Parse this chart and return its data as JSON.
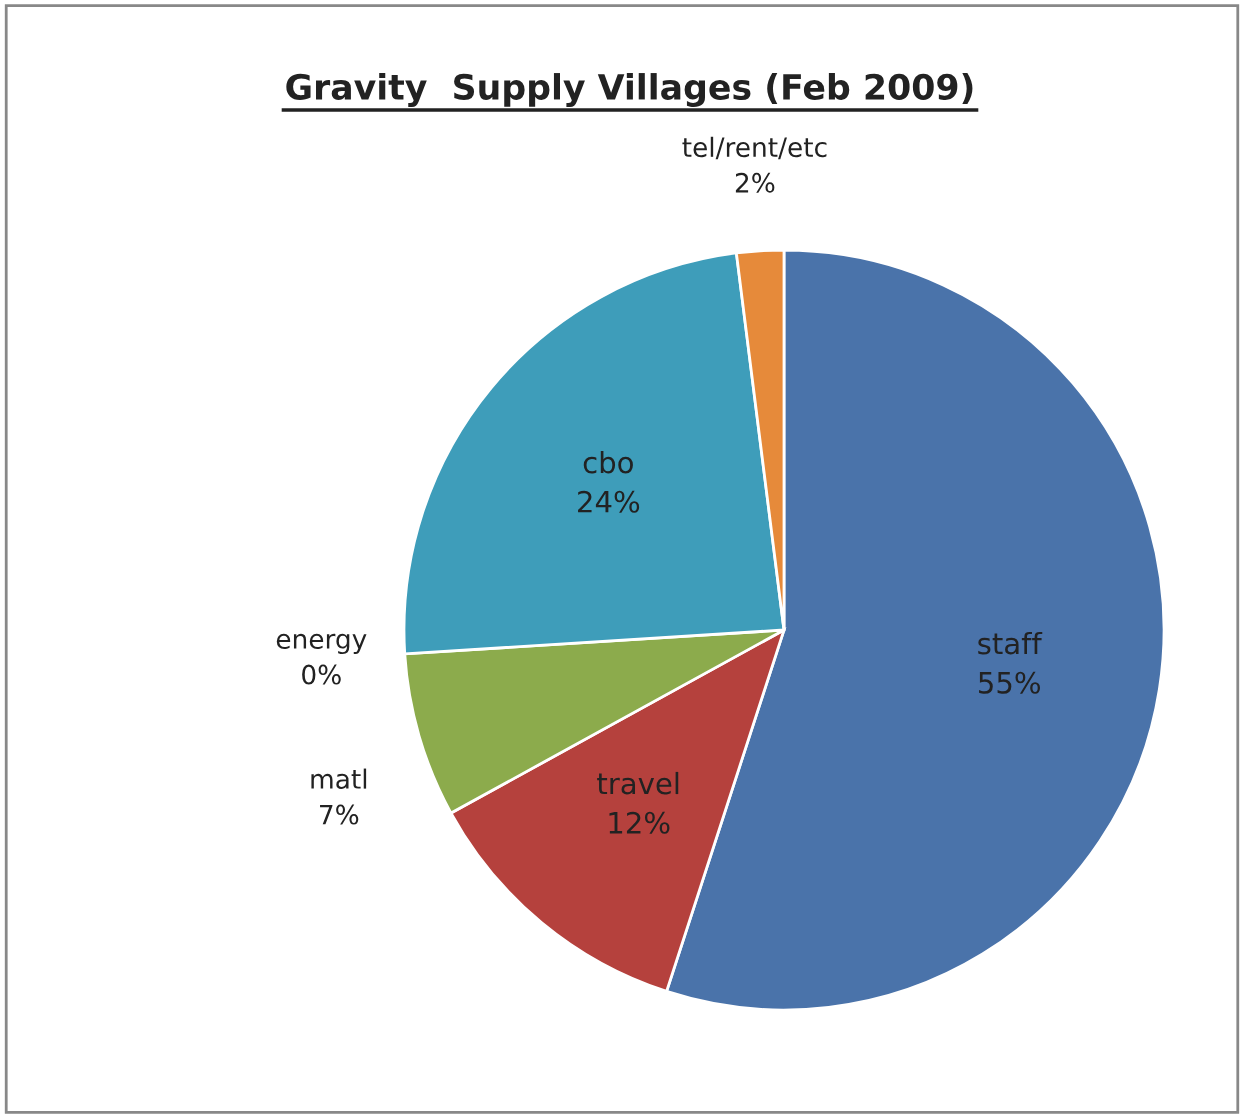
{
  "chart_data": {
    "type": "pie",
    "title": "Gravity  Supply Villages (Feb 2009)",
    "categories": [
      "staff",
      "travel",
      "matl",
      "energy",
      "cbo",
      "tel/rent/etc"
    ],
    "values": [
      55,
      12,
      7,
      0,
      24,
      2
    ],
    "colors": [
      "#4a73aa",
      "#b5413d",
      "#8cab4c",
      "#7d60a0",
      "#3e9dba",
      "#e68a3a"
    ],
    "value_labels": [
      "55%",
      "12%",
      "7%",
      "0%",
      "24%",
      "2%"
    ]
  }
}
